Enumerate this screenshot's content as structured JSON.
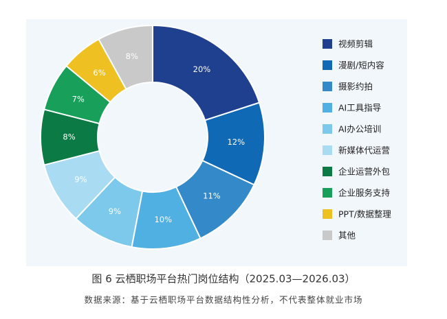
{
  "chart_data": {
    "type": "donut",
    "title": "图 6  云栖职场平台热门岗位结构（2025.03—2026.03）",
    "source": "数据来源：基于云栖职场平台数据结构性分析，不代表整体就业市场",
    "categories": [
      "视频剪辑",
      "漫剧/短内容",
      "摄影约拍",
      "AI工具指导",
      "AI办公培训",
      "新媒体代运营",
      "企业运营外包",
      "企业服务支持",
      "PPT/数据整理",
      "其他"
    ],
    "values": [
      20,
      12,
      11,
      10,
      9,
      9,
      8,
      7,
      6,
      8
    ],
    "value_labels": [
      "20%",
      "12%",
      "11%",
      "10%",
      "9%",
      "9%",
      "8%",
      "7%",
      "6%",
      "8%"
    ],
    "colors": [
      "#1f3f8f",
      "#0f69b4",
      "#3489c9",
      "#4fb0e1",
      "#7cc9eb",
      "#a9dbf2",
      "#0b7a45",
      "#18a05b",
      "#efc022",
      "#c9c9c9"
    ],
    "legend": "right"
  }
}
